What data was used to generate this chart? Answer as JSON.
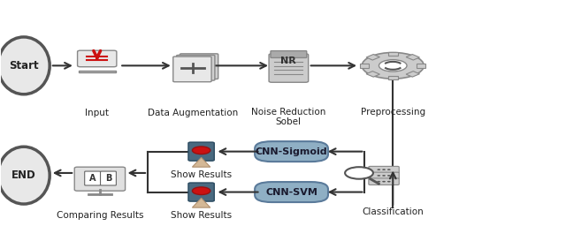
{
  "bg_color": "#ffffff",
  "box_color": "#8FAFC4",
  "box_text_color": "#1a1a2e",
  "ellipse_color": "#e8e8e8",
  "ellipse_border": "#555555",
  "arrow_color": "#333333",
  "label_color": "#222222",
  "label_fontsize": 7.5,
  "start_label": "Start",
  "end_label": "END",
  "input_label": "Input",
  "augment_label": "Data Augmentation",
  "noise_label": "Noise Reduction\nSobel",
  "preprocess_label": "Preprocessing",
  "compare_label": "Comparing Results",
  "show1_label": "Show Results",
  "show2_label": "Show Results",
  "cnn_sig_label": "CNN-Sigmoid",
  "cnn_svm_label": "CNN-SVM",
  "classify_label": "Classification"
}
